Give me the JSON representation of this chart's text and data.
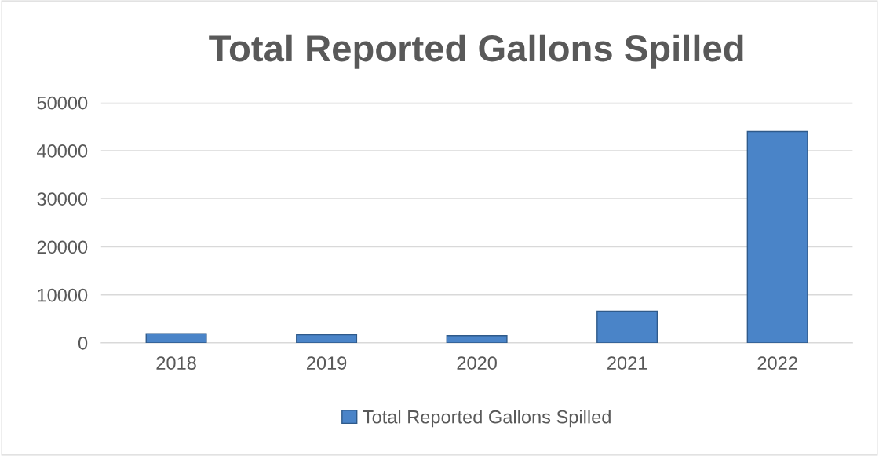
{
  "chart_data": {
    "type": "bar",
    "title": "Total Reported Gallons Spilled",
    "categories": [
      "2018",
      "2019",
      "2020",
      "2021",
      "2022"
    ],
    "series": [
      {
        "name": "Total Reported Gallons Spilled",
        "color": "#4a84c8",
        "values": [
          1900,
          1700,
          1500,
          6600,
          44000
        ]
      }
    ],
    "ylim": [
      0,
      50000
    ],
    "yticks": [
      0,
      10000,
      20000,
      30000,
      40000,
      50000
    ],
    "grid": "y",
    "legend": "bottom"
  }
}
